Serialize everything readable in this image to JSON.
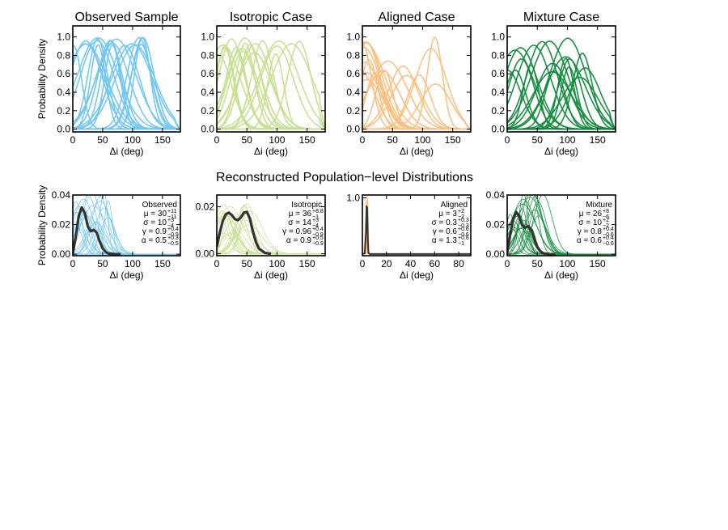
{
  "figure": {
    "section_title": "Reconstructed Population−level Distributions"
  },
  "chart_data": [
    {
      "id": "top-observed",
      "type": "line",
      "title": "Observed Sample",
      "xlabel": "Δi (deg)",
      "ylabel": "Probability Density",
      "xlim": [
        0,
        180
      ],
      "ylim": [
        -0.03,
        1.12
      ],
      "xticks": [
        "0",
        "50",
        "100",
        "150"
      ],
      "xtick_values": [
        0,
        50,
        100,
        150
      ],
      "yticks": [
        "0.0",
        "0.2",
        "0.4",
        "0.6",
        "0.8",
        "1.0"
      ],
      "ytick_values": [
        0,
        0.2,
        0.4,
        0.6,
        0.8,
        1.0
      ],
      "color": "#6ec6f5",
      "line_count": 20,
      "peak_range": [
        0,
        125
      ],
      "peak_height": [
        0.9,
        1.0
      ]
    },
    {
      "id": "top-isotropic",
      "type": "line",
      "title": "Isotropic Case",
      "xlabel": "Δi (deg)",
      "ylabel": "",
      "xlim": [
        0,
        180
      ],
      "ylim": [
        -0.03,
        1.12
      ],
      "xticks": [
        "0",
        "50",
        "100",
        "150"
      ],
      "xtick_values": [
        0,
        50,
        100,
        150
      ],
      "yticks": [
        "0.0",
        "0.2",
        "0.4",
        "0.6",
        "0.8",
        "1.0"
      ],
      "ytick_values": [
        0,
        0.2,
        0.4,
        0.6,
        0.8,
        1.0
      ],
      "color": "#c6df8f",
      "line_count": 20,
      "peak_range": [
        0,
        140
      ],
      "peak_height": [
        0.8,
        1.0
      ]
    },
    {
      "id": "top-aligned",
      "type": "line",
      "title": "Aligned Case",
      "xlabel": "Δi (deg)",
      "ylabel": "",
      "xlim": [
        0,
        180
      ],
      "ylim": [
        -0.03,
        1.12
      ],
      "xticks": [
        "0",
        "50",
        "100",
        "150"
      ],
      "xtick_values": [
        0,
        50,
        100,
        150
      ],
      "yticks": [
        "0.0",
        "0.2",
        "0.4",
        "0.6",
        "0.8",
        "1.0"
      ],
      "ytick_values": [
        0,
        0.2,
        0.4,
        0.6,
        0.8,
        1.0
      ],
      "color": "#fbbf7f",
      "line_count": 20,
      "peak_range": [
        0,
        130
      ],
      "peak_height": [
        0.45,
        1.0
      ]
    },
    {
      "id": "top-mixture",
      "type": "line",
      "title": "Mixture Case",
      "xlabel": "Δi (deg)",
      "ylabel": "",
      "xlim": [
        0,
        180
      ],
      "ylim": [
        -0.03,
        1.12
      ],
      "xticks": [
        "0",
        "50",
        "100",
        "150"
      ],
      "xtick_values": [
        0,
        50,
        100,
        150
      ],
      "yticks": [
        "0.0",
        "0.2",
        "0.4",
        "0.6",
        "0.8",
        "1.0"
      ],
      "ytick_values": [
        0,
        0.2,
        0.4,
        0.6,
        0.8,
        1.0
      ],
      "color": "#0e8a3a",
      "line_count": 20,
      "peak_range": [
        0,
        140
      ],
      "peak_height": [
        0.55,
        1.0
      ]
    },
    {
      "id": "bottom-observed",
      "type": "line",
      "xlabel": "Δi (deg)",
      "ylabel": "Probability Density",
      "xlim": [
        0,
        180
      ],
      "ylim": [
        -0.001,
        0.04
      ],
      "xticks": [
        "0",
        "50",
        "100",
        "150"
      ],
      "xtick_values": [
        0,
        50,
        100,
        150
      ],
      "yticks": [
        "0.00",
        "0.02",
        "0.04"
      ],
      "ytick_values": [
        0,
        0.02,
        0.04
      ],
      "color": "#6ec6f5",
      "line_count": 22,
      "mean_curve": {
        "x": [
          0,
          5,
          10,
          15,
          20,
          25,
          30,
          35,
          40,
          45,
          50,
          55,
          60,
          70,
          80
        ],
        "y": [
          0.0005,
          0.012,
          0.026,
          0.0315,
          0.028,
          0.019,
          0.0155,
          0.0165,
          0.0145,
          0.0085,
          0.004,
          0.0015,
          0.0004,
          0.0001,
          0.0
        ]
      },
      "annotation": [
        "Observed",
        "μ = 30",
        "σ = 10",
        "γ = 0.9",
        "α = 0.5"
      ],
      "annotation_super": [
        "",
        "+11",
        "+3",
        "+0.4",
        "+0.3"
      ],
      "annotation_sub": [
        "",
        "−11",
        "−4",
        "−0.9",
        "−0.5"
      ]
    },
    {
      "id": "bottom-isotropic",
      "type": "line",
      "xlabel": "Δi (deg)",
      "ylabel": "",
      "xlim": [
        0,
        180
      ],
      "ylim": [
        -0.0008,
        0.025
      ],
      "xticks": [
        "0",
        "50",
        "100",
        "150"
      ],
      "xtick_values": [
        0,
        50,
        100,
        150
      ],
      "yticks": [
        "0.00",
        "0.02"
      ],
      "ytick_values": [
        0,
        0.02
      ],
      "color": "#c6df8f",
      "line_count": 22,
      "mean_curve": {
        "x": [
          0,
          5,
          10,
          15,
          20,
          25,
          30,
          35,
          40,
          45,
          50,
          55,
          60,
          65,
          70,
          80,
          90
        ],
        "y": [
          0.003,
          0.009,
          0.014,
          0.0168,
          0.0175,
          0.0165,
          0.0148,
          0.0143,
          0.0155,
          0.0175,
          0.0178,
          0.015,
          0.0095,
          0.005,
          0.0022,
          0.0004,
          0.0
        ]
      },
      "annotation": [
        "Isotropic",
        "μ = 36",
        "σ = 14",
        "γ = 0.96",
        "α = 0.9"
      ],
      "annotation_super": [
        "",
        "+8.8",
        "+3",
        "+0.4",
        "+0.5"
      ],
      "annotation_sub": [
        "",
        "−1",
        "−4",
        "−0.9",
        "−0.9"
      ]
    },
    {
      "id": "bottom-aligned",
      "type": "line",
      "xlabel": "Δi (deg)",
      "ylabel": "",
      "xlim": [
        0,
        90
      ],
      "ylim": [
        -0.03,
        1.05
      ],
      "xticks": [
        "0",
        "20",
        "40",
        "60",
        "80"
      ],
      "xtick_values": [
        0,
        20,
        40,
        60,
        80
      ],
      "yticks": [
        "1.0"
      ],
      "ytick_values": [
        1.0
      ],
      "color": "#fbbf7f",
      "line_count": 10,
      "mean_curve": {
        "x": [
          0,
          2,
          3,
          3.5,
          4,
          4.5,
          5,
          6,
          90
        ],
        "y": [
          0.0,
          0.01,
          0.4,
          0.85,
          0.82,
          0.3,
          0.02,
          0.0,
          0.0
        ]
      },
      "annotation": [
        "Aligned",
        "μ = 3",
        "σ = 0.3",
        "γ = 0.6",
        "α = 1.3"
      ],
      "annotation_super": [
        "",
        "+2",
        "+0.3",
        "+0.6",
        "+0.6"
      ],
      "annotation_sub": [
        "",
        "−2",
        "−0.3",
        "−0.6",
        "−1"
      ]
    },
    {
      "id": "bottom-mixture",
      "type": "line",
      "xlabel": "Δi (deg)",
      "ylabel": "",
      "xlim": [
        0,
        180
      ],
      "ylim": [
        -0.001,
        0.04
      ],
      "xticks": [
        "0",
        "50",
        "100",
        "150"
      ],
      "xtick_values": [
        0,
        50,
        100,
        150
      ],
      "yticks": [
        "0.00",
        "0.02",
        "0.04"
      ],
      "ytick_values": [
        0,
        0.02,
        0.04
      ],
      "color": "#0e8a3a",
      "line_count": 22,
      "mean_curve": {
        "x": [
          0,
          5,
          10,
          15,
          20,
          25,
          30,
          35,
          40,
          45,
          50,
          55,
          60,
          70,
          80
        ],
        "y": [
          0.001,
          0.013,
          0.024,
          0.0285,
          0.0255,
          0.0195,
          0.0178,
          0.019,
          0.0165,
          0.0105,
          0.005,
          0.002,
          0.0006,
          0.0001,
          0.0
        ]
      },
      "annotation": [
        "Mixture",
        "μ = 26",
        "σ = 10",
        "γ = 0.8",
        "α = 0.6"
      ],
      "annotation_super": [
        "",
        "+8",
        "+2",
        "+0.4",
        "+0.4"
      ],
      "annotation_sub": [
        "",
        "−6",
        "−2",
        "−0.6",
        "−0.6"
      ]
    }
  ]
}
